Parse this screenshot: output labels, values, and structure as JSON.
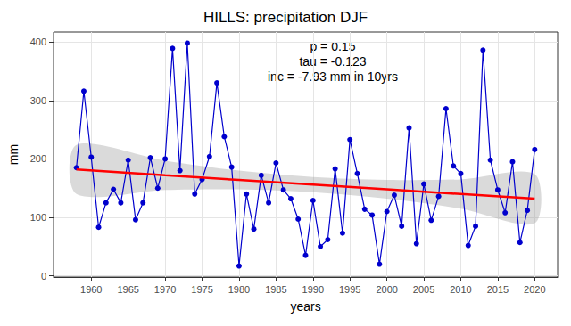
{
  "chart_data": {
    "type": "line",
    "title": "HILLS: precipitation DJF",
    "x_label": "years",
    "y_label": "mm",
    "annotations": [
      "p = 0.15",
      "tau = -0.123",
      "inc = -7.93 mm in 10yrs"
    ],
    "x": [
      1958,
      1959,
      1960,
      1961,
      1962,
      1963,
      1964,
      1965,
      1966,
      1967,
      1968,
      1969,
      1970,
      1971,
      1972,
      1973,
      1974,
      1975,
      1976,
      1977,
      1978,
      1979,
      1980,
      1981,
      1982,
      1983,
      1984,
      1985,
      1986,
      1987,
      1988,
      1989,
      1990,
      1991,
      1992,
      1993,
      1994,
      1995,
      1996,
      1997,
      1998,
      1999,
      2000,
      2001,
      2002,
      2003,
      2004,
      2005,
      2006,
      2007,
      2008,
      2009,
      2010,
      2011,
      2012,
      2013,
      2014,
      2015,
      2016,
      2017,
      2018,
      2019,
      2020
    ],
    "series": [
      {
        "type": "line",
        "color": "#0000cd",
        "marker": "circle",
        "values": [
          185,
          316,
          203,
          83,
          125,
          148,
          125,
          198,
          96,
          125,
          202,
          150,
          200,
          389,
          180,
          398,
          140,
          165,
          204,
          330,
          238,
          186,
          17,
          140,
          80,
          172,
          125,
          193,
          147,
          132,
          97,
          35,
          129,
          50,
          62,
          183,
          73,
          233,
          175,
          114,
          104,
          20,
          110,
          138,
          85,
          253,
          55,
          157,
          95,
          136,
          286,
          188,
          175,
          52,
          85,
          386,
          198,
          147,
          108,
          195,
          57,
          112,
          216
        ]
      },
      {
        "type": "trend",
        "color": "#ff0000",
        "x": [
          1958,
          1970,
          1980,
          1990,
          2000,
          2010,
          2020
        ],
        "values": [
          182,
          172,
          164,
          156,
          148,
          140,
          132
        ],
        "lower": [
          140,
          147,
          148,
          143,
          132,
          115,
          90
        ],
        "upper": [
          224,
          197,
          180,
          169,
          164,
          165,
          174
        ]
      }
    ],
    "xlim": [
      1954.9,
      2023.1
    ],
    "xticks": [
      1960,
      1965,
      1970,
      1975,
      1980,
      1985,
      1990,
      1995,
      2000,
      2005,
      2010,
      2015,
      2020
    ],
    "ylim": [
      -2,
      417
    ],
    "yticks": [
      0,
      100,
      200,
      300,
      400
    ],
    "grid": true
  }
}
